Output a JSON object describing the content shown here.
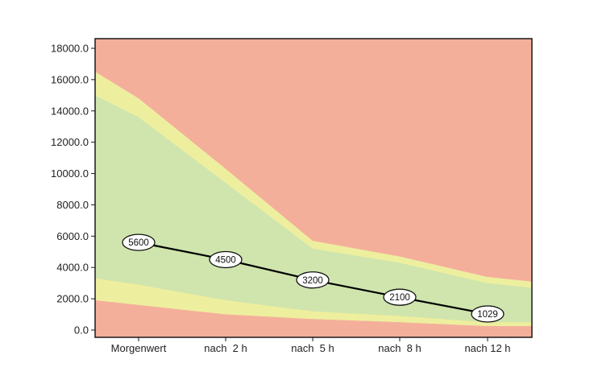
{
  "chart_data": {
    "type": "area",
    "categories": [
      "Morgenwert",
      "nach  2 h",
      "nach  5 h",
      "nach  8 h",
      "nach 12 h"
    ],
    "ylim": [
      0,
      18000
    ],
    "yticks": [
      "0.0",
      "2000.0",
      "4000.0",
      "6000.0",
      "8000.0",
      "10000.0",
      "12000.0",
      "14000.0",
      "16000.0",
      "18000.0"
    ],
    "grid": false,
    "edge_x": {
      "left": -0.5,
      "right": 4.5
    },
    "bands": {
      "lower_red_top": {
        "x": [
          -0.5,
          0,
          1,
          2,
          3,
          4,
          4.5
        ],
        "y": [
          1900,
          1600,
          1000,
          700,
          500,
          250,
          250
        ],
        "color": "#f4af9b"
      },
      "lower_yellow_top": {
        "x": [
          -0.5,
          0,
          1,
          2,
          3,
          4,
          4.5
        ],
        "y": [
          3300,
          2900,
          1900,
          1200,
          900,
          500,
          500
        ],
        "color": "#edef9f"
      },
      "green_top": {
        "x": [
          -0.5,
          0,
          1,
          2,
          3,
          4,
          4.5
        ],
        "y": [
          15000,
          13600,
          9400,
          5200,
          4300,
          3000,
          2700
        ],
        "color": "#cfe5ad"
      },
      "upper_yellow_top": {
        "x": [
          -0.5,
          0,
          1,
          2,
          3,
          4,
          4.5
        ],
        "y": [
          16500,
          14800,
          10300,
          5700,
          4700,
          3400,
          3100
        ],
        "color": "#edef9f"
      },
      "background_color": "#f4af9b"
    },
    "series": [
      {
        "values": [
          5600,
          4500,
          3200,
          2100,
          1029
        ],
        "labels": [
          "5600",
          "4500",
          "3200",
          "2100",
          "1029"
        ],
        "color": "#000000"
      }
    ]
  }
}
